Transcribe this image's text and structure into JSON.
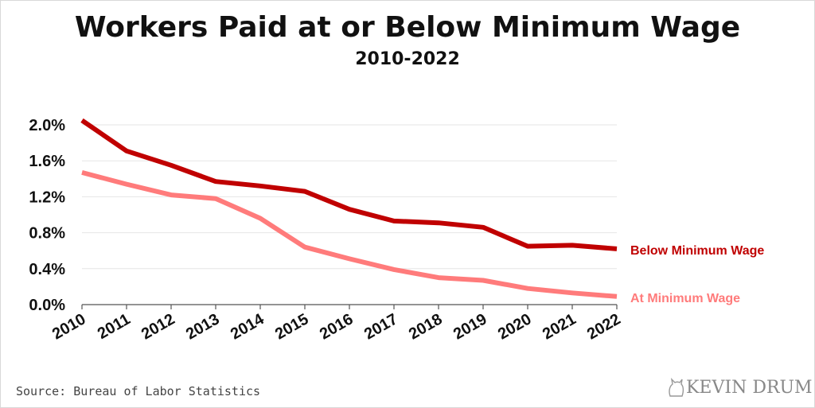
{
  "chart_data": {
    "type": "line",
    "title": "Workers Paid at or Below Minimum Wage",
    "subtitle": "2010-2022",
    "x": [
      "2010",
      "2011",
      "2012",
      "2013",
      "2014",
      "2015",
      "2016",
      "2017",
      "2018",
      "2019",
      "2020",
      "2021",
      "2022"
    ],
    "series": [
      {
        "name": "Below Minimum Wage",
        "color": "#c00000",
        "values": [
          2.05,
          1.71,
          1.55,
          1.37,
          1.32,
          1.26,
          1.06,
          0.93,
          0.91,
          0.86,
          0.65,
          0.66,
          0.62
        ]
      },
      {
        "name": "At Minimum Wage",
        "color": "#ff7b7b",
        "values": [
          1.47,
          1.34,
          1.22,
          1.18,
          0.96,
          0.64,
          0.51,
          0.39,
          0.3,
          0.27,
          0.18,
          0.13,
          0.09
        ]
      }
    ],
    "ylim": [
      0,
      2.0
    ],
    "yticks": [
      "0.0%",
      "0.4%",
      "0.8%",
      "1.2%",
      "1.6%",
      "2.0%"
    ],
    "grid": true,
    "legend": "right, inline labels at line ends"
  },
  "footer": {
    "source": "Source: Bureau of Labor Statistics",
    "brand": "KEVIN DRUM"
  }
}
